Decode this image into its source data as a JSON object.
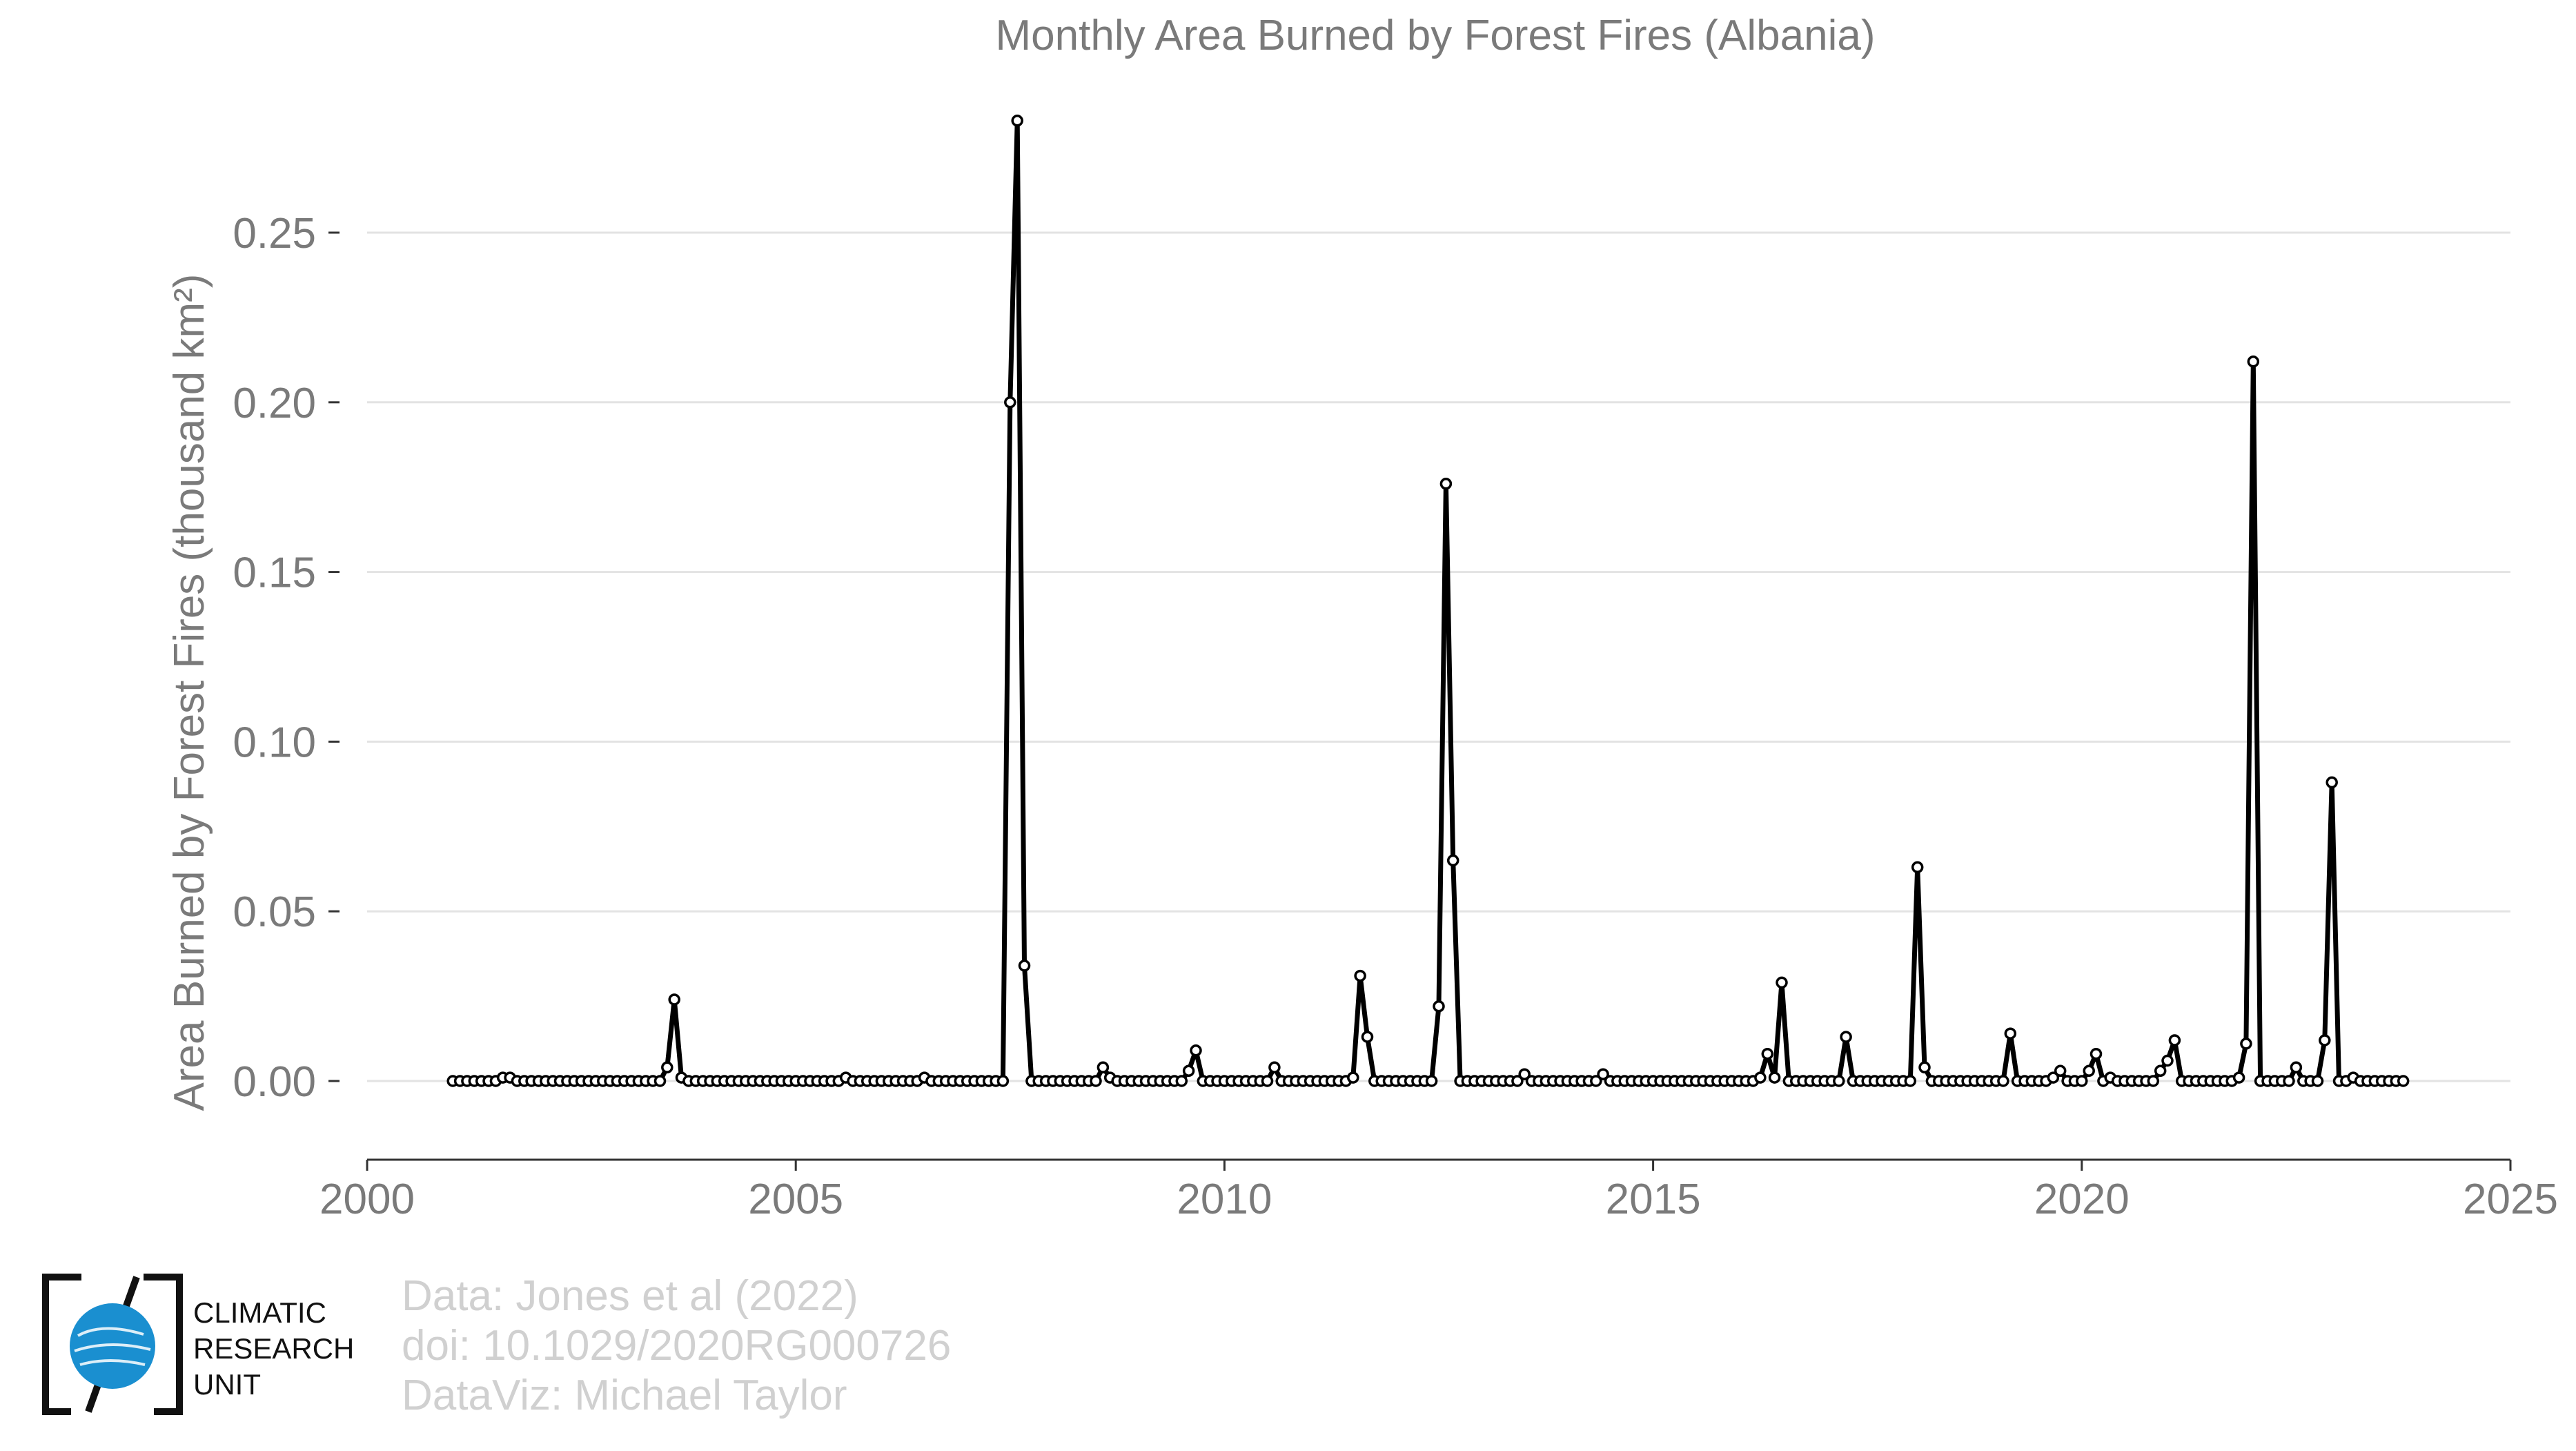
{
  "chart_data": {
    "type": "line",
    "title": "Monthly Area Burned by Forest Fires (Albania)",
    "xlabel": "",
    "ylabel": "Area Burned by Forest Fires (thousand km²)",
    "xlim": [
      2000,
      2025
    ],
    "ylim": [
      -0.022,
      0.29
    ],
    "xticks": [
      "2000",
      "2005",
      "2010",
      "2015",
      "2020",
      "2025"
    ],
    "yticks": [
      "0.00",
      "0.05",
      "0.10",
      "0.15",
      "0.20",
      "0.25"
    ],
    "grid": "horizontal",
    "start": [
      2001,
      1
    ],
    "series": [
      {
        "values": [
          0,
          0,
          0,
          0,
          0,
          0,
          0,
          0.001,
          0.001,
          0,
          0,
          0,
          0,
          0,
          0,
          0,
          0,
          0,
          0,
          0,
          0,
          0,
          0,
          0,
          0,
          0,
          0,
          0,
          0,
          0,
          0.004,
          0.024,
          0.001,
          0,
          0,
          0,
          0,
          0,
          0,
          0,
          0,
          0,
          0,
          0,
          0,
          0,
          0,
          0,
          0,
          0,
          0,
          0,
          0,
          0,
          0,
          0.001,
          0,
          0,
          0,
          0,
          0,
          0,
          0,
          0,
          0,
          0,
          0.001,
          0,
          0,
          0,
          0,
          0,
          0,
          0,
          0,
          0,
          0,
          0,
          0.2,
          0.283,
          0.034,
          0,
          0,
          0,
          0,
          0,
          0,
          0,
          0,
          0,
          0,
          0.004,
          0.001,
          0,
          0,
          0,
          0,
          0,
          0,
          0,
          0,
          0,
          0,
          0.003,
          0.009,
          0,
          0,
          0,
          0,
          0,
          0,
          0,
          0,
          0,
          0,
          0.004,
          0,
          0,
          0,
          0,
          0,
          0,
          0,
          0,
          0,
          0,
          0.001,
          0.031,
          0.013,
          0,
          0,
          0,
          0,
          0,
          0,
          0,
          0,
          0,
          0.022,
          0.176,
          0.065,
          0,
          0,
          0,
          0,
          0,
          0,
          0,
          0,
          0,
          0.002,
          0,
          0,
          0,
          0,
          0,
          0,
          0,
          0,
          0,
          0,
          0.002,
          0,
          0,
          0,
          0,
          0,
          0,
          0,
          0,
          0,
          0,
          0,
          0,
          0,
          0,
          0,
          0,
          0,
          0,
          0,
          0,
          0,
          0.001,
          0.008,
          0.001,
          0.029,
          0,
          0,
          0,
          0,
          0,
          0,
          0,
          0,
          0.013,
          0,
          0,
          0,
          0,
          0,
          0,
          0,
          0,
          0,
          0.063,
          0.004,
          0,
          0,
          0,
          0,
          0,
          0,
          0,
          0,
          0,
          0,
          0,
          0.014,
          0,
          0,
          0,
          0,
          0,
          0.001,
          0.003,
          0,
          0,
          0,
          0.003,
          0.008,
          0,
          0.001,
          0,
          0,
          0,
          0,
          0,
          0,
          0.003,
          0.006,
          0.012,
          0,
          0,
          0,
          0,
          0,
          0,
          0,
          0,
          0.001,
          0.011,
          0.212,
          0,
          0,
          0,
          0,
          0,
          0.004,
          0,
          0,
          0,
          0.012,
          0.088,
          0,
          0,
          0.001,
          0,
          0,
          0,
          0,
          0,
          0,
          0
        ]
      }
    ]
  },
  "credits": {
    "line1": "Data: Jones et al (2022)",
    "line2": "doi: 10.1029/2020RG000726",
    "line3": "DataViz: Michael Taylor"
  },
  "logo": {
    "line1": "CLIMATIC",
    "line2": "RESEARCH",
    "line3": "UNIT",
    "globe_color": "#1a8fd0"
  }
}
